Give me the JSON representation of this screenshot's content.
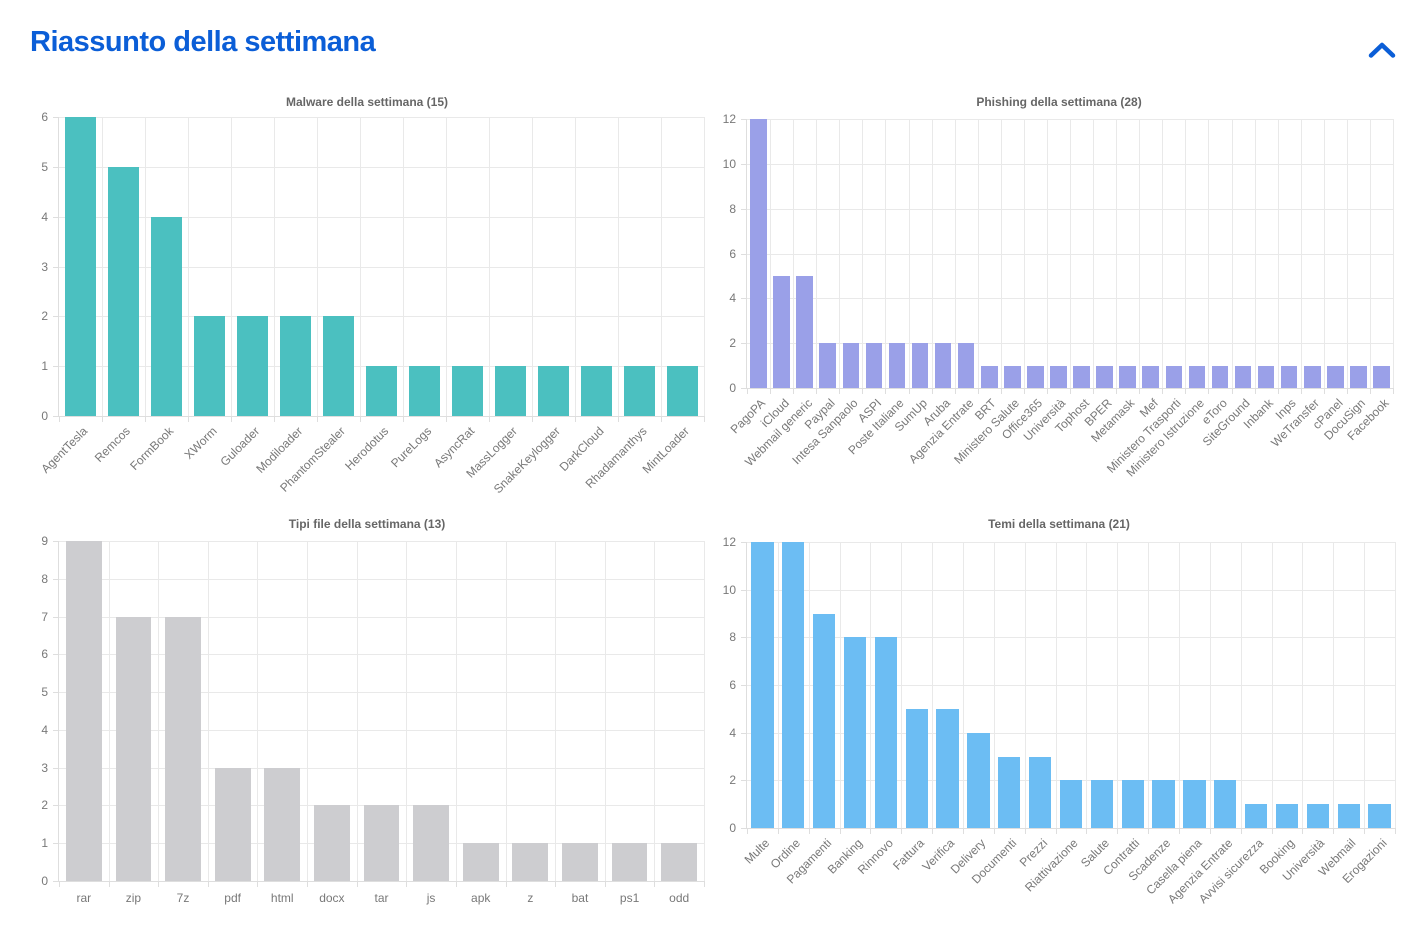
{
  "page": {
    "title": "Riassunto della settimana",
    "title_color": "#0B5ED7",
    "background": "#FFFFFF"
  },
  "header": {
    "collapse_icon": "chevron-up-icon",
    "collapse_color": "#0B5ED7"
  },
  "chart_data": [
    {
      "type": "bar",
      "title": "Malware della settimana (15)",
      "categories": [
        "AgentTesla",
        "Remcos",
        "FormBook",
        "XWorm",
        "Guloader",
        "Modiloader",
        "PhantomStealer",
        "Herodotus",
        "PureLogs",
        "AsyncRat",
        "MassLogger",
        "SnakeKeylogger",
        "DarkCloud",
        "Rhadamanthys",
        "MintLoader"
      ],
      "values": [
        6,
        5,
        4,
        2,
        2,
        2,
        2,
        1,
        1,
        1,
        1,
        1,
        1,
        1,
        1
      ],
      "bar_color": "#4BC0C0",
      "xlabel": "",
      "ylabel": "",
      "ylim": [
        0,
        6
      ],
      "ytick_step": 1,
      "xlabel_rotation": -45,
      "grid": true,
      "legend": "none"
    },
    {
      "type": "bar",
      "title": "Phishing della settimana (28)",
      "categories": [
        "PagoPA",
        "iCloud",
        "Webmail generic",
        "Paypal",
        "Intesa Sanpaolo",
        "ASPI",
        "Poste Italiane",
        "SumUp",
        "Aruba",
        "Agenzia Entrate",
        "BRT",
        "Ministero Salute",
        "Office365",
        "Università",
        "Tophost",
        "BPER",
        "Metamask",
        "Mef",
        "Ministero Trasporti",
        "Ministero Istruzione",
        "eToro",
        "SiteGround",
        "Inbank",
        "Inps",
        "WeTransfer",
        "cPanel",
        "DocuSign",
        "Facebook"
      ],
      "values": [
        12,
        5,
        5,
        2,
        2,
        2,
        2,
        2,
        2,
        2,
        1,
        1,
        1,
        1,
        1,
        1,
        1,
        1,
        1,
        1,
        1,
        1,
        1,
        1,
        1,
        1,
        1,
        1
      ],
      "bar_color": "#9AA0E8",
      "xlabel": "",
      "ylabel": "",
      "ylim": [
        0,
        12
      ],
      "ytick_step": 2,
      "xlabel_rotation": -45,
      "grid": true,
      "legend": "none"
    },
    {
      "type": "bar",
      "title": "Tipi file della settimana (13)",
      "categories": [
        "rar",
        "zip",
        "7z",
        "pdf",
        "html",
        "docx",
        "tar",
        "js",
        "apk",
        "z",
        "bat",
        "ps1",
        "odd"
      ],
      "values": [
        9,
        7,
        7,
        3,
        3,
        2,
        2,
        2,
        1,
        1,
        1,
        1,
        1
      ],
      "bar_color": "#CDCDD0",
      "xlabel": "",
      "ylabel": "",
      "ylim": [
        0,
        9
      ],
      "ytick_step": 1,
      "xlabel_rotation": 0,
      "grid": true,
      "legend": "none"
    },
    {
      "type": "bar",
      "title": "Temi della settimana (21)",
      "categories": [
        "Multe",
        "Ordine",
        "Pagamenti",
        "Banking",
        "Rinnovo",
        "Fattura",
        "Verifica",
        "Delivery",
        "Documenti",
        "Prezzi",
        "Riattivazione",
        "Salute",
        "Contratti",
        "Scadenze",
        "Casella piena",
        "Agenzia Entrate",
        "Avvisi sicurezza",
        "Booking",
        "Università",
        "Webmail",
        "Erogazioni"
      ],
      "values": [
        12,
        12,
        9,
        8,
        8,
        5,
        5,
        4,
        3,
        3,
        2,
        2,
        2,
        2,
        2,
        2,
        1,
        1,
        1,
        1,
        1
      ],
      "bar_color": "#6CBDF3",
      "xlabel": "",
      "ylabel": "",
      "ylim": [
        0,
        12
      ],
      "ytick_step": 2,
      "xlabel_rotation": -45,
      "grid": true,
      "legend": "none"
    }
  ]
}
